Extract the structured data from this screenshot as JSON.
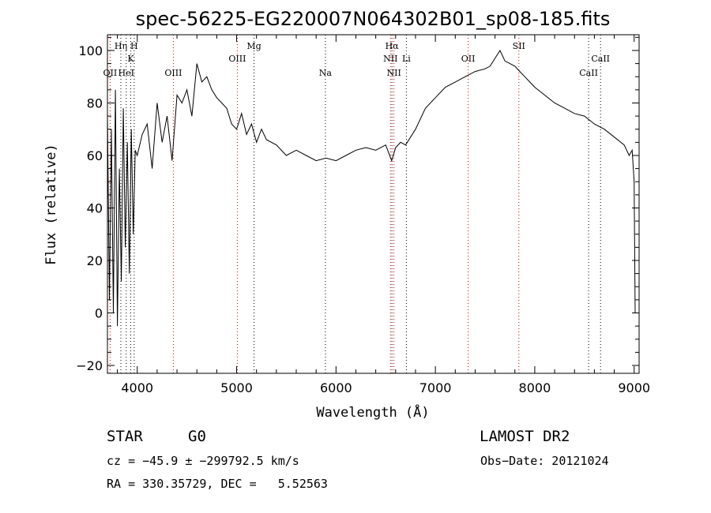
{
  "chart_data": {
    "type": "line",
    "title": "spec-56225-EG220007N064302B01_sp08-185.fits",
    "xlabel": "Wavelength (Å)",
    "ylabel": "Flux (relative)",
    "xlim": [
      3700,
      9050
    ],
    "ylim": [
      -23,
      106
    ],
    "xticks": [
      4000,
      5000,
      6000,
      7000,
      8000,
      9000
    ],
    "yticks": [
      -20,
      0,
      20,
      40,
      60,
      80,
      100
    ],
    "grid": false,
    "series_color": "#000000",
    "marker_colors": {
      "red": "#cc0000",
      "black": "#000000"
    },
    "series": [
      {
        "x": [
          3700,
          3720,
          3740,
          3760,
          3780,
          3800,
          3820,
          3840,
          3860,
          3880,
          3900,
          3920,
          3940,
          3960,
          3980,
          4000,
          4050,
          4100,
          4150,
          4200,
          4250,
          4300,
          4350,
          4400,
          4450,
          4500,
          4550,
          4600,
          4650,
          4700,
          4750,
          4800,
          4850,
          4900,
          4950,
          5000,
          5050,
          5100,
          5150,
          5200,
          5250,
          5300,
          5400,
          5500,
          5600,
          5700,
          5800,
          5900,
          6000,
          6100,
          6200,
          6300,
          6400,
          6500,
          6560,
          6600,
          6650,
          6700,
          6800,
          6900,
          7000,
          7100,
          7200,
          7300,
          7400,
          7500,
          7550,
          7600,
          7650,
          7700,
          7750,
          7800,
          7850,
          7900,
          7950,
          8000,
          8100,
          8200,
          8300,
          8400,
          8500,
          8600,
          8700,
          8800,
          8900,
          8950,
          8980,
          9000,
          9010
        ],
        "y": [
          75,
          5,
          70,
          0,
          85,
          -5,
          55,
          12,
          78,
          25,
          65,
          15,
          70,
          30,
          62,
          60,
          68,
          72,
          55,
          80,
          65,
          75,
          58,
          83,
          80,
          85,
          75,
          95,
          88,
          90,
          85,
          82,
          80,
          78,
          72,
          70,
          76,
          68,
          72,
          65,
          70,
          66,
          64,
          60,
          62,
          60,
          58,
          59,
          58,
          60,
          62,
          63,
          62,
          64,
          58,
          63,
          65,
          64,
          70,
          78,
          82,
          86,
          88,
          90,
          92,
          93,
          94,
          97,
          100,
          96,
          95,
          94,
          92,
          90,
          88,
          86,
          83,
          80,
          78,
          76,
          75,
          72,
          70,
          67,
          64,
          60,
          62,
          50,
          0
        ]
      }
    ],
    "spectral_lines": [
      {
        "label": "OII",
        "x": 3727,
        "color": "red",
        "row": 4
      },
      {
        "label": "Hη",
        "x": 3835,
        "color": "black",
        "row": 1
      },
      {
        "label": "H",
        "x": 3969,
        "color": "black",
        "row": 1
      },
      {
        "label": "K",
        "x": 3934,
        "color": "black",
        "row": 2
      },
      {
        "label": "HeI",
        "x": 3889,
        "color": "black",
        "row": 4
      },
      {
        "label": "OIII",
        "x": 4363,
        "color": "red",
        "row": 4
      },
      {
        "label": "Mg",
        "x": 5175,
        "color": "black",
        "row": 1
      },
      {
        "label": "OIII",
        "x": 5007,
        "color": "red",
        "row": 3
      },
      {
        "label": "Na",
        "x": 5893,
        "color": "black",
        "row": 4
      },
      {
        "label": "Hα",
        "x": 6563,
        "color": "black",
        "row": 1
      },
      {
        "label": "NII",
        "x": 6548,
        "color": "red",
        "row": 3
      },
      {
        "label": "Li",
        "x": 6708,
        "color": "black",
        "row": 3
      },
      {
        "label": "NII",
        "x": 6583,
        "color": "red",
        "row": 4
      },
      {
        "label": "OII",
        "x": 7330,
        "color": "red",
        "row": 3
      },
      {
        "label": "SII",
        "x": 7840,
        "color": "red",
        "row": 1
      },
      {
        "label": "CaII",
        "x": 8662,
        "color": "black",
        "row": 3
      },
      {
        "label": "CaII",
        "x": 8542,
        "color": "black",
        "row": 4
      }
    ]
  },
  "info": {
    "object_class": "STAR",
    "subclass": "G0",
    "survey": "LAMOST DR2",
    "cz": "cz = −45.9 ± −299792.5 km/s",
    "obs_date": "Obs−Date: 20121024",
    "coords": "RA = 330.35729, DEC =   5.52563"
  }
}
